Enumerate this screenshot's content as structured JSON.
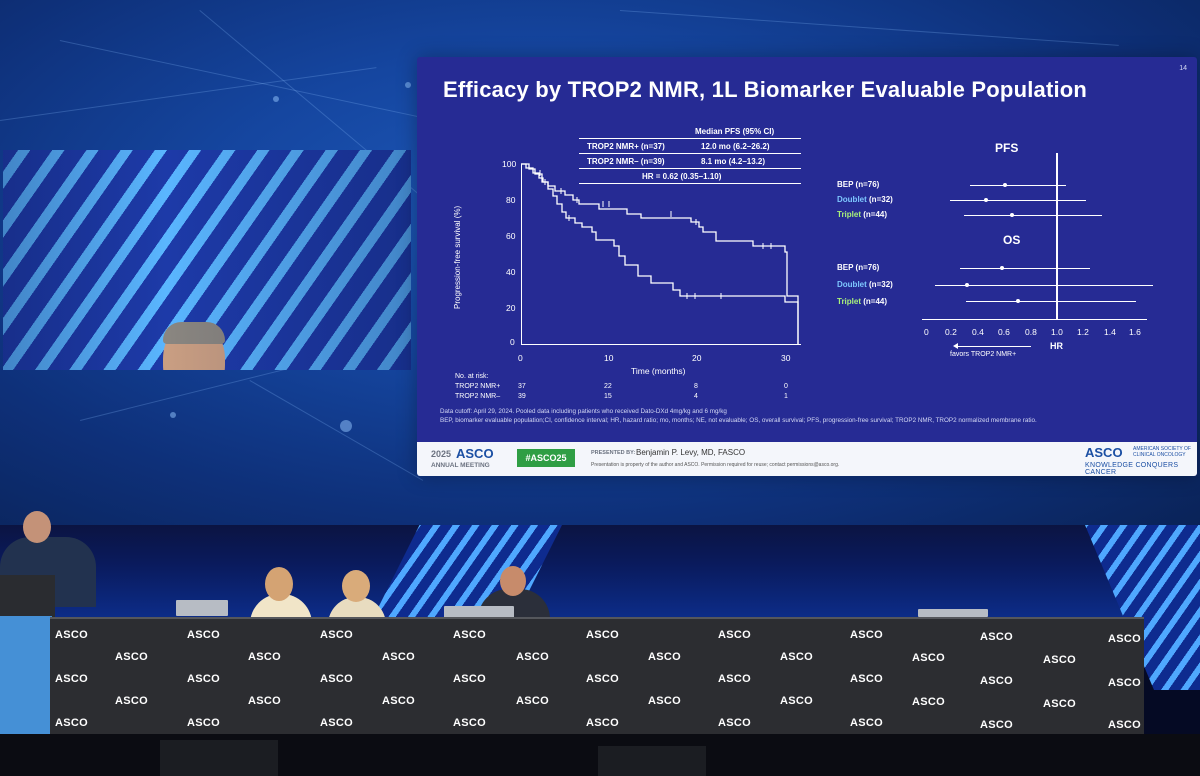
{
  "slide": {
    "number": "14",
    "title": "Efficacy by TROP2 NMR, 1L Biomarker Evaluable Population",
    "pfs_table": {
      "header": "Median PFS (95% CI)",
      "rows": [
        {
          "group": "TROP2 NMR+ (n=37)",
          "value": "12.0 mo (6.2–26.2)"
        },
        {
          "group": "TROP2 NMR– (n=39)",
          "value": "8.1 mo (4.2–13.2)"
        }
      ],
      "hr": "HR = 0.62 (0.35–1.10)"
    },
    "km": {
      "ylabel": "Progression-free survival (%)",
      "xlabel": "Time (months)",
      "yticks": [
        "100",
        "80",
        "60",
        "40",
        "20",
        "0"
      ],
      "xticks": [
        "0",
        "10",
        "20",
        "30"
      ],
      "at_risk_title": "No. at risk:",
      "at_risk": [
        {
          "label": "TROP2 NMR+",
          "values": [
            "37",
            "22",
            "8",
            "0"
          ]
        },
        {
          "label": "TROP2 NMR–",
          "values": [
            "39",
            "15",
            "4",
            "1"
          ]
        }
      ]
    },
    "forest": {
      "pfs_label": "PFS",
      "os_label": "OS",
      "pfs_rows": [
        {
          "label": "BEP",
          "n": "(n=76)",
          "color": "#ffffff"
        },
        {
          "label": "Doublet",
          "n": "(n=32)",
          "color": "#7ec8ff"
        },
        {
          "label": "Triplet",
          "n": "(n=44)",
          "color": "#a8f07a"
        }
      ],
      "os_rows": [
        {
          "label": "BEP",
          "n": "(n=76)",
          "color": "#ffffff"
        },
        {
          "label": "Doublet",
          "n": "(n=32)",
          "color": "#7ec8ff"
        },
        {
          "label": "Triplet",
          "n": "(n=44)",
          "color": "#a8f07a"
        }
      ],
      "xticks": [
        "0",
        "0.2",
        "0.4",
        "0.6",
        "0.8",
        "1.0",
        "1.2",
        "1.4",
        "1.6"
      ],
      "xlabel": "HR",
      "favors": "favors TROP2 NMR+"
    },
    "footnote1": "Data cutoff: April 29, 2024. Pooled data including patients who received Dato-DXd 4mg/kg and 6 mg/kg",
    "footnote2": "BEP, biomarker evaluable population;CI, confidence interval; HR, hazard ratio; mo, months; NE, not evaluable; OS, overall survival; PFS, progression-free survival; TROP2 NMR, TROP2 normalized membrane ratio.",
    "footer": {
      "year": "2025",
      "asco": "ASCO",
      "meeting": "ANNUAL MEETING",
      "hashtag": "#ASCO25",
      "presented_by_label": "PRESENTED BY:",
      "presenter": "Benjamin P. Levy, MD, FASCO",
      "disclaimer": "Presentation is property of the author and ASCO. Permission required for reuse; contact permissions@asco.org.",
      "society_line1": "AMERICAN SOCIETY OF",
      "society_line2": "CLINICAL ONCOLOGY",
      "tagline": "KNOWLEDGE CONQUERS CANCER"
    }
  },
  "stage": {
    "desk_logo": "ASCO"
  },
  "colors": {
    "slide_bg": "#262b94",
    "footer_green": "#2f9e44",
    "asco_blue": "#1b4fa3"
  }
}
